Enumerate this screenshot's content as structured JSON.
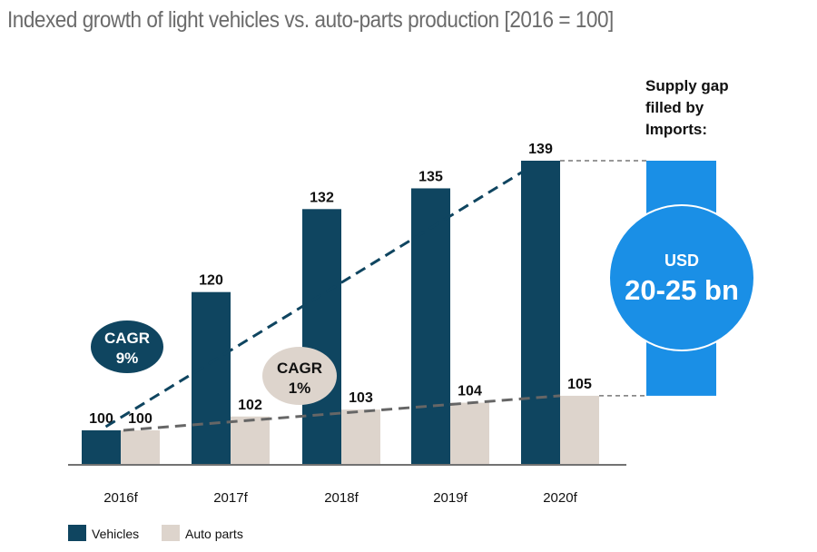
{
  "chart_data": {
    "type": "bar",
    "title": "Indexed growth of light vehicles vs. auto-parts production [2016 = 100]",
    "xlabel": "",
    "ylabel": "",
    "categories": [
      "2016f",
      "2017f",
      "2018f",
      "2019f",
      "2020f"
    ],
    "series": [
      {
        "name": "Vehicles",
        "color": "#0f4560",
        "values": [
          100,
          120,
          132,
          135,
          139
        ]
      },
      {
        "name": "Auto parts",
        "color": "#ddd4cc",
        "values": [
          100,
          102,
          103,
          104,
          105
        ]
      }
    ],
    "ylim": [
      70,
      145
    ],
    "grid": false,
    "legend": "bottom-left",
    "annotations": {
      "cagr_vehicles": {
        "line1": "CAGR",
        "line2": "9%"
      },
      "cagr_parts": {
        "line1": "CAGR",
        "line2": "1%"
      },
      "supply_gap": {
        "heading": [
          "Supply gap",
          "filled by",
          "Imports:"
        ],
        "currency": "USD",
        "value": "20-25 bn",
        "color": "#1a8fe6"
      }
    }
  }
}
